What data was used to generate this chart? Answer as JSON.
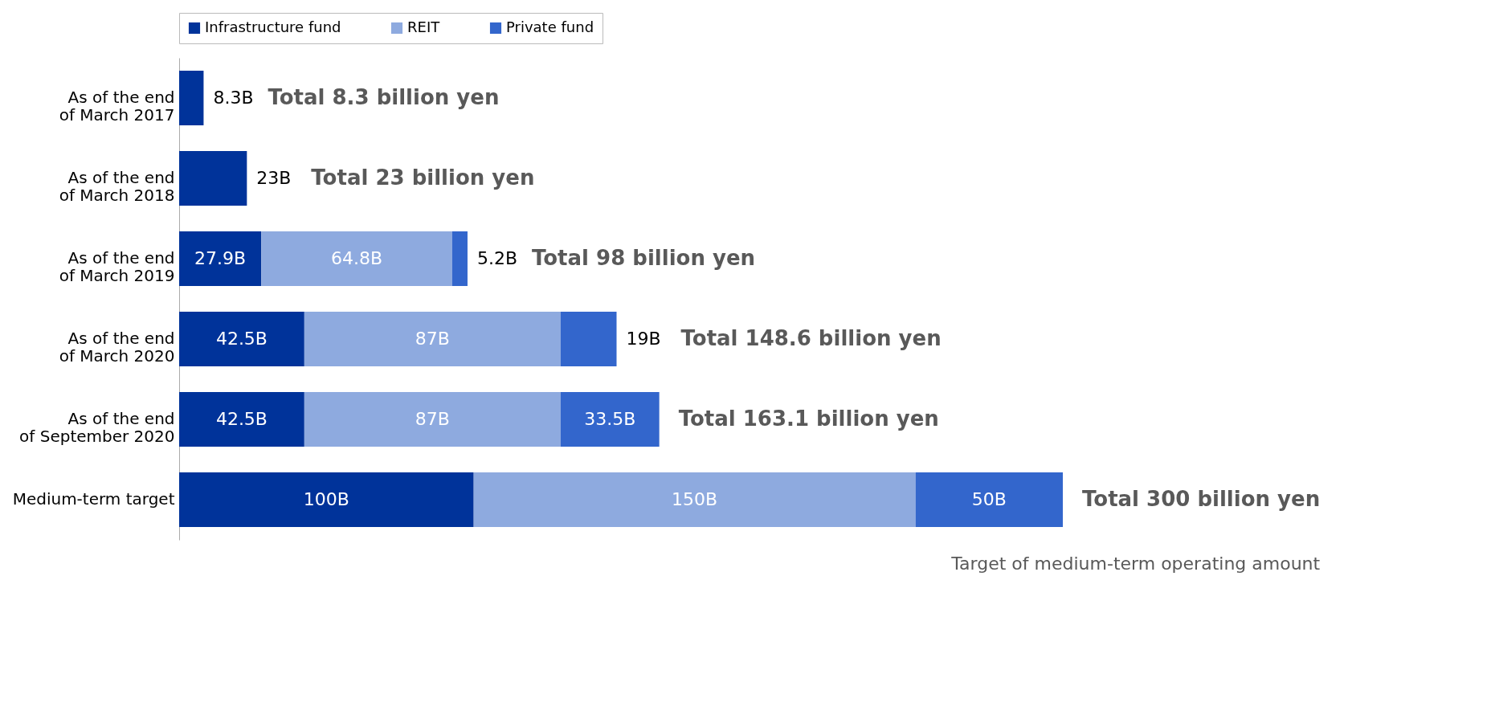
{
  "chart_data": {
    "type": "bar",
    "orientation": "horizontal",
    "stacked": true,
    "legend": "top left",
    "categories": [
      "As of the end\nof March 2017",
      "As of the end\nof March 2018",
      "As of the end\nof March 2019",
      "As of the end\nof March 2020",
      "As of the end\nof September 2020",
      "Medium-term target"
    ],
    "series": [
      {
        "name": "Infrastructure fund",
        "color": "#00339a",
        "values": [
          8.3,
          23,
          27.9,
          42.5,
          42.5,
          100
        ],
        "value_labels": [
          "8.3B",
          "23B",
          "27.9B",
          "42.5B",
          "42.5B",
          "100B"
        ]
      },
      {
        "name": "REIT",
        "color": "#8eaadf",
        "values": [
          null,
          null,
          64.8,
          87,
          87,
          150
        ],
        "value_labels": [
          null,
          null,
          "64.8B",
          "87B",
          "87B",
          "150B"
        ]
      },
      {
        "name": "Private fund",
        "color": "#3366cc",
        "values": [
          null,
          null,
          5.2,
          19,
          33.5,
          50
        ],
        "value_labels": [
          null,
          null,
          "5.2B",
          "19B",
          "33.5B",
          "50B"
        ]
      }
    ],
    "xlim": [
      0,
      300
    ],
    "totals": [
      "Total 8.3 billion yen",
      "Total 23 billion yen",
      "Total 98 billion yen",
      "Total 148.6 billion yen",
      "Total 163.1 billion yen",
      "Total 300 billion yen"
    ],
    "annotations": [
      "Target of medium-term operating amount"
    ]
  }
}
